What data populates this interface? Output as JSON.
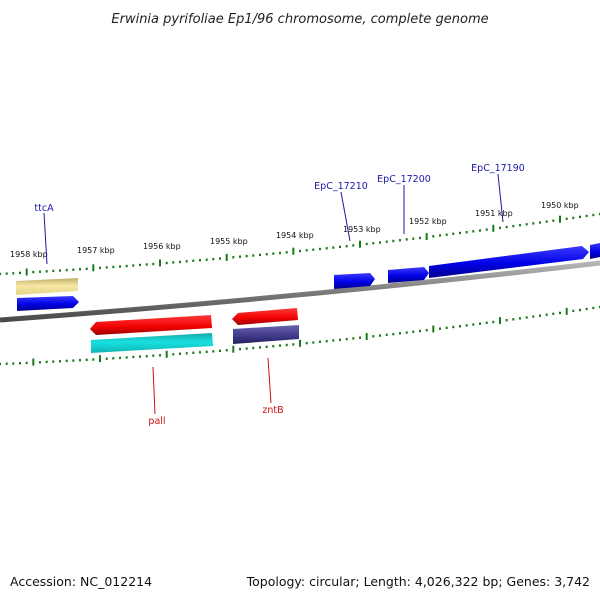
{
  "title": "Erwinia pyrifoliae Ep1/96 chromosome, complete genome",
  "footer": {
    "accession": "Accession: NC_012214",
    "topology": "Topology: circular; Length: 4,026,322 bp; Genes: 3,742"
  },
  "colors": {
    "tick": "#1a7a1a",
    "top_gene_label": "#1a1aa8",
    "bottom_gene_label": "#cc1111",
    "backbone": "#808080"
  },
  "kbp_labels": [
    "1958 kbp",
    "1957 kbp",
    "1956 kbp",
    "1955 kbp",
    "1954 kbp",
    "1953 kbp",
    "1952 kbp",
    "1951 kbp",
    "1950 kbp"
  ],
  "gene_labels_top": [
    {
      "name": "ttcA",
      "color": "#1a1aa8"
    },
    {
      "name": "EpC_17210",
      "color": "#1a1aa8"
    },
    {
      "name": "EpC_17200",
      "color": "#1a1aa8"
    },
    {
      "name": "EpC_17190",
      "color": "#1a1aa8"
    }
  ],
  "gene_labels_bottom": [
    {
      "name": "pall",
      "color": "#cc1111"
    },
    {
      "name": "zntB",
      "color": "#cc1111"
    }
  ]
}
